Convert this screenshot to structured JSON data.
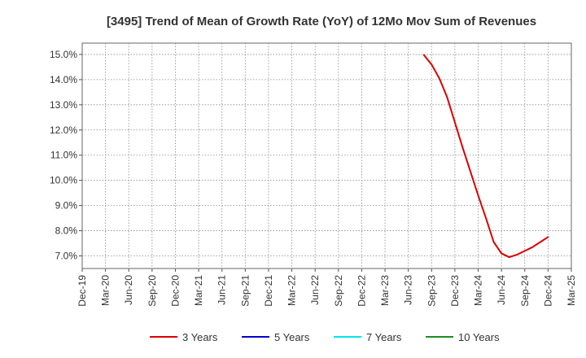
{
  "chart_data": {
    "type": "line",
    "title": "[3495]  Trend of Mean of Growth Rate (YoY) of 12Mo Mov Sum of Revenues",
    "xlabel": "",
    "ylabel": "",
    "y_unit_suffix": "%",
    "ylim": [
      6.5,
      15.45
    ],
    "yticks": [
      "7.0%",
      "8.0%",
      "9.0%",
      "10.0%",
      "11.0%",
      "12.0%",
      "13.0%",
      "14.0%",
      "15.0%"
    ],
    "xticks": [
      "Dec-19",
      "Mar-20",
      "Jun-20",
      "Sep-20",
      "Dec-20",
      "Mar-21",
      "Jun-21",
      "Sep-21",
      "Dec-21",
      "Mar-22",
      "Jun-22",
      "Sep-22",
      "Dec-22",
      "Mar-23",
      "Jun-23",
      "Sep-23",
      "Dec-23",
      "Mar-24",
      "Jun-24",
      "Sep-24",
      "Dec-24",
      "Mar-25"
    ],
    "grid": true,
    "legend_position": "bottom",
    "series": [
      {
        "name": "3 Years",
        "color": "#dd0000",
        "x": [
          "Aug-23",
          "Sep-23",
          "Oct-23",
          "Nov-23",
          "Dec-23",
          "Jan-24",
          "Feb-24",
          "Mar-24",
          "Apr-24",
          "May-24",
          "Jun-24",
          "Jul-24",
          "Aug-24",
          "Sep-24",
          "Oct-24",
          "Nov-24",
          "Dec-24"
        ],
        "values": [
          14.98,
          14.6,
          14.05,
          13.3,
          12.3,
          11.3,
          10.35,
          9.4,
          8.5,
          7.55,
          7.1,
          6.95,
          7.05,
          7.2,
          7.35,
          7.55,
          7.75
        ]
      },
      {
        "name": "5 Years",
        "color": "#0000cc",
        "x": [],
        "values": []
      },
      {
        "name": "7 Years",
        "color": "#00e5ee",
        "x": [],
        "values": []
      },
      {
        "name": "10 Years",
        "color": "#228b22",
        "x": [],
        "values": []
      }
    ]
  }
}
